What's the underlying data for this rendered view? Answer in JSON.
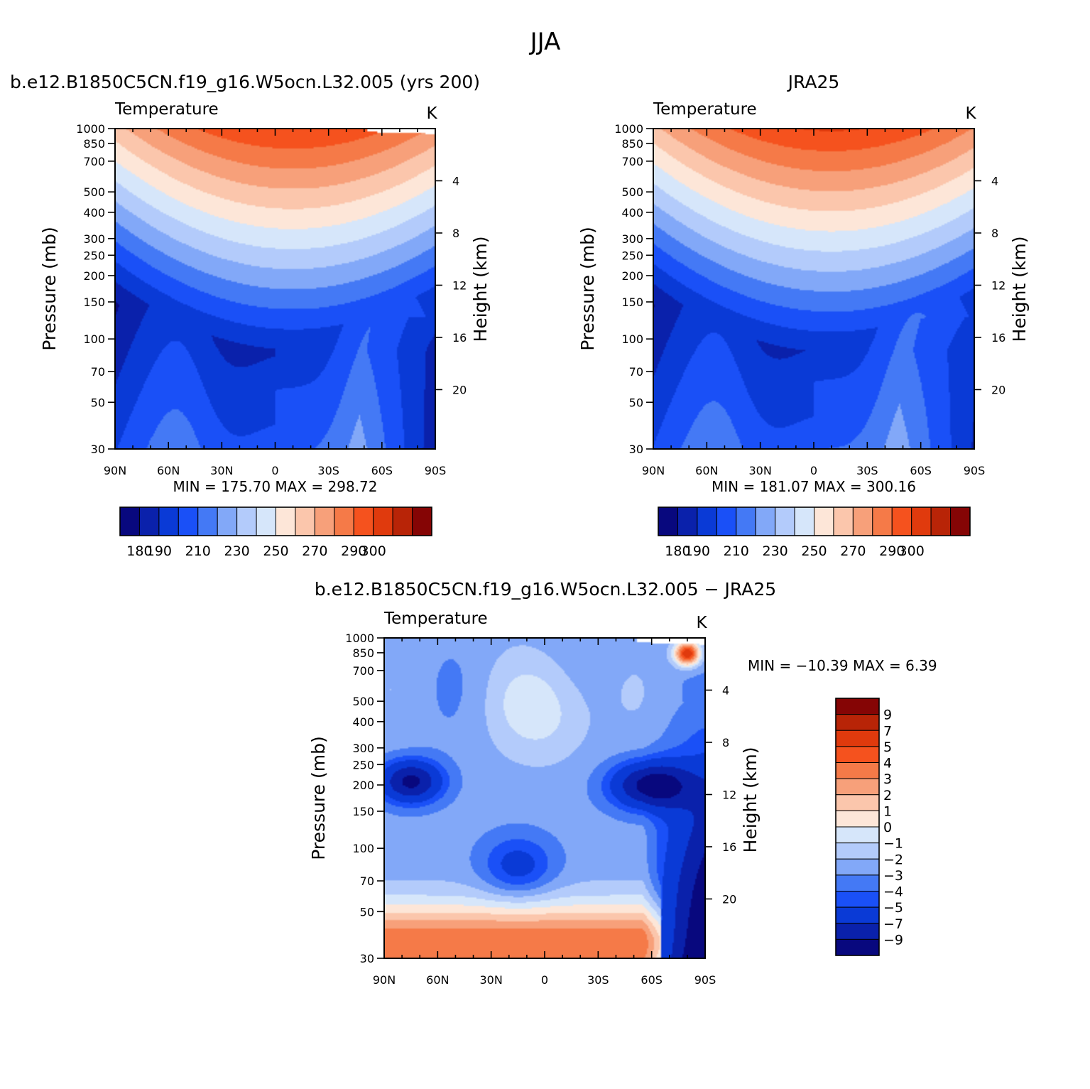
{
  "figure_title": "JJA",
  "chart_data": [
    {
      "type": "heatmap",
      "title": "b.e12.B1850C5CN.f19_g16.W5ocn.L32.005 (yrs 200)",
      "variable": "Temperature",
      "units": "K",
      "xlabel": "",
      "ylabel": "Pressure (mb)",
      "ylabel_right": "Height (km)",
      "x_ticks": [
        "90N",
        "60N",
        "30N",
        "0",
        "30S",
        "60S",
        "90S"
      ],
      "y_ticks": [
        "30",
        "50",
        "70",
        "100",
        "150",
        "200",
        "250",
        "300",
        "400",
        "500",
        "700",
        "850",
        "1000"
      ],
      "y_ticks_right": [
        "20",
        "16",
        "12",
        "8",
        "4"
      ],
      "xlim": [
        90,
        -90
      ],
      "ylim": [
        1000,
        30
      ],
      "y_scale": "log",
      "min_label": "MIN = 175.70",
      "max_label": "MAX = 298.72",
      "min": 175.7,
      "max": 298.72,
      "contour_levels": [
        180,
        190,
        200,
        210,
        220,
        230,
        240,
        250,
        260,
        270,
        280,
        290,
        300
      ],
      "colorbar_labels": [
        "180",
        "190",
        "210",
        "230",
        "250",
        "270",
        "290",
        "300"
      ],
      "colorbar_orientation": "horizontal"
    },
    {
      "type": "heatmap",
      "title": "JRA25",
      "variable": "Temperature",
      "units": "K",
      "xlabel": "",
      "ylabel": "Pressure (mb)",
      "ylabel_right": "Height (km)",
      "x_ticks": [
        "90N",
        "60N",
        "30N",
        "0",
        "30S",
        "60S",
        "90S"
      ],
      "y_ticks": [
        "30",
        "50",
        "70",
        "100",
        "150",
        "200",
        "250",
        "300",
        "400",
        "500",
        "700",
        "850",
        "1000"
      ],
      "y_ticks_right": [
        "20",
        "16",
        "12",
        "8",
        "4"
      ],
      "xlim": [
        90,
        -90
      ],
      "ylim": [
        1000,
        30
      ],
      "y_scale": "log",
      "min_label": "MIN = 181.07",
      "max_label": "MAX = 300.16",
      "min": 181.07,
      "max": 300.16,
      "contour_levels": [
        180,
        190,
        200,
        210,
        220,
        230,
        240,
        250,
        260,
        270,
        280,
        290,
        300
      ],
      "colorbar_labels": [
        "180",
        "190",
        "210",
        "230",
        "250",
        "270",
        "290",
        "300"
      ],
      "colorbar_orientation": "horizontal"
    },
    {
      "type": "heatmap",
      "title": "b.e12.B1850C5CN.f19_g16.W5ocn.L32.005 − JRA25",
      "variable": "Temperature",
      "units": "K",
      "xlabel": "",
      "ylabel": "Pressure (mb)",
      "ylabel_right": "Height (km)",
      "x_ticks": [
        "90N",
        "60N",
        "30N",
        "0",
        "30S",
        "60S",
        "90S"
      ],
      "y_ticks": [
        "30",
        "50",
        "70",
        "100",
        "150",
        "200",
        "250",
        "300",
        "400",
        "500",
        "700",
        "850",
        "1000"
      ],
      "y_ticks_right": [
        "20",
        "16",
        "12",
        "8",
        "4"
      ],
      "xlim": [
        90,
        -90
      ],
      "ylim": [
        1000,
        30
      ],
      "y_scale": "log",
      "min_label": "MIN = −10.39",
      "max_label": "MAX =    6.39",
      "min": -10.39,
      "max": 6.39,
      "contour_levels": [
        -9,
        -7,
        -5,
        -4,
        -3,
        -2,
        -1,
        0,
        1,
        2,
        3,
        4,
        5,
        7,
        9
      ],
      "colorbar_labels": [
        "9",
        "7",
        "5",
        "4",
        "3",
        "2",
        "1",
        "0",
        "−1",
        "−2",
        "−3",
        "−4",
        "−5",
        "−7",
        "−9"
      ],
      "colorbar_orientation": "vertical"
    }
  ],
  "colors": {
    "temp_palette": [
      "#08087e",
      "#0a21ab",
      "#0a3ad6",
      "#1a50f7",
      "#4479f5",
      "#82a8f8",
      "#b3cbfb",
      "#d6e6fa",
      "#fde6d8",
      "#fbc6ac",
      "#f7a07a",
      "#f57a48",
      "#f5521e",
      "#e03a0d",
      "#b82407",
      "#850505"
    ],
    "diff_palette": [
      "#850505",
      "#b82407",
      "#e03a0d",
      "#f5521e",
      "#f57a48",
      "#f7a07a",
      "#fbc6ac",
      "#fde6d8",
      "#d6e6fa",
      "#b3cbfb",
      "#82a8f8",
      "#4479f5",
      "#1a50f7",
      "#0a3ad6",
      "#0a21ab",
      "#08087e"
    ]
  }
}
